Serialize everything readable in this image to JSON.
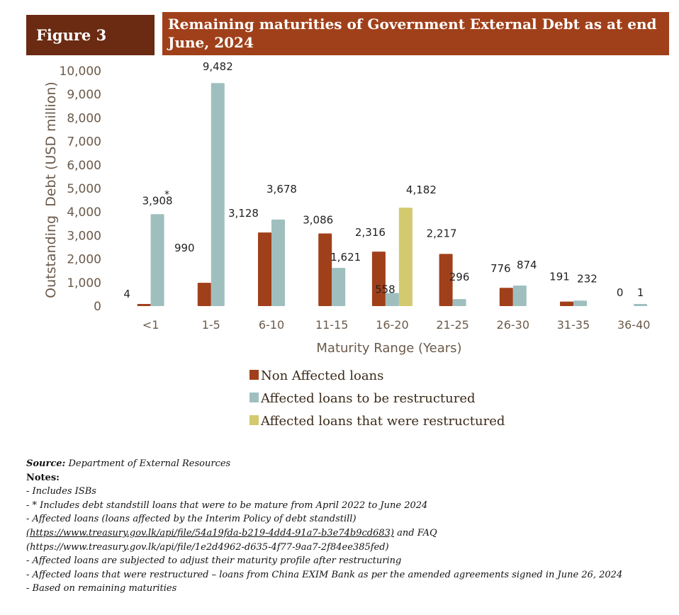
{
  "figure_label": "Figure 3",
  "figure_title": "Remaining maturities of Government External Debt as at end June, 2024",
  "chart_data": {
    "type": "bar",
    "ylabel": "Outstanding  Debt (USD million)",
    "xlabel": "Maturity Range (Years)",
    "ylim": [
      0,
      10000
    ],
    "yticks": [
      "0",
      "1,000",
      "2,000",
      "3,000",
      "4,000",
      "5,000",
      "6,000",
      "7,000",
      "8,000",
      "9,000",
      "10,000"
    ],
    "categories": [
      "<1",
      "1-5",
      "6-10",
      "11-15",
      "16-20",
      "21-25",
      "26-30",
      "31-35",
      "36-40"
    ],
    "series": [
      {
        "name": "Non Affected loans",
        "color": "#a0401a",
        "values": [
          4,
          990,
          3128,
          3086,
          2316,
          2217,
          776,
          191,
          0
        ],
        "labels": [
          "4",
          "990",
          "3,128",
          "3,086",
          "2,316",
          "2,217",
          "776",
          "191",
          "0"
        ]
      },
      {
        "name": "Affected loans to be restructured",
        "color": "#9fbfbf",
        "values": [
          3908,
          9482,
          3678,
          1621,
          558,
          296,
          874,
          232,
          1
        ],
        "labels": [
          "3,908",
          "9,482",
          "3,678",
          "1,621",
          "558",
          "296",
          "874",
          "232",
          "1"
        ]
      },
      {
        "name": "Affected loans that were restructured",
        "color": "#d3c96e",
        "values": [
          null,
          null,
          null,
          null,
          4182,
          null,
          null,
          null,
          null
        ],
        "labels": [
          "",
          "",
          "",
          "",
          "4,182",
          "",
          "",
          "",
          ""
        ]
      }
    ],
    "annotation_marker": "*",
    "legend_position": "bottom"
  },
  "source": {
    "label": "Source:",
    "text": " Department of External Resources"
  },
  "notes_label": "Notes:",
  "notes": [
    "- Includes ISBs",
    "- * Includes debt standstill loans that were to be mature from April 2022 to June 2024",
    "- Affected loans (loans affected by the Interim Policy of debt standstill)"
  ],
  "link_line": {
    "url1": "(https://www.treasury.gov.lk/api/file/54a19fda-b219-4dd4-91a7-b3e74b9cd683)",
    "mid": " and FAQ",
    "url2": "(https://www.treasury.gov.lk/api/file/1e2d4962-d635-4f77-9aa7-2f84ee385fed)"
  },
  "notes_after": [
    "- Affected loans are subjected to adjust their maturity profile after restructuring",
    "- Affected loans that were restructured – loans from China EXIM Bank as per the amended agreements signed in June 26, 2024",
    "- Based on remaining maturities"
  ]
}
